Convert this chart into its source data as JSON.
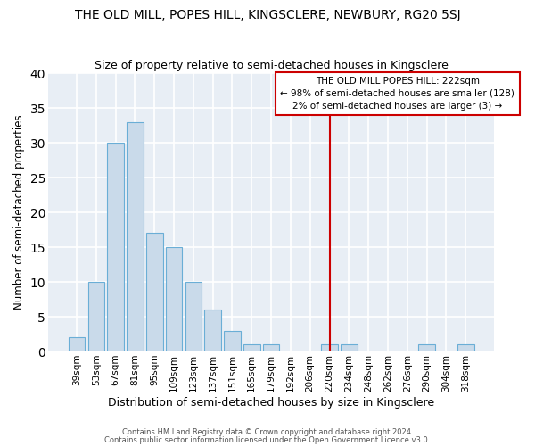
{
  "title": "THE OLD MILL, POPES HILL, KINGSCLERE, NEWBURY, RG20 5SJ",
  "subtitle": "Size of property relative to semi-detached houses in Kingsclere",
  "xlabel": "Distribution of semi-detached houses by size in Kingsclere",
  "ylabel": "Number of semi-detached properties",
  "categories": [
    "39sqm",
    "53sqm",
    "67sqm",
    "81sqm",
    "95sqm",
    "109sqm",
    "123sqm",
    "137sqm",
    "151sqm",
    "165sqm",
    "179sqm",
    "192sqm",
    "206sqm",
    "220sqm",
    "234sqm",
    "248sqm",
    "262sqm",
    "276sqm",
    "290sqm",
    "304sqm",
    "318sqm"
  ],
  "values": [
    2,
    10,
    30,
    33,
    17,
    15,
    10,
    6,
    3,
    1,
    1,
    0,
    0,
    1,
    1,
    0,
    0,
    0,
    1,
    0,
    1
  ],
  "bar_color": "#c9daea",
  "bar_edge_color": "#6aaed6",
  "plot_bg_color": "#e8eef5",
  "fig_bg_color": "#ffffff",
  "grid_color": "#ffffff",
  "vline_x_index": 13,
  "vline_color": "#cc0000",
  "annotation_title": "THE OLD MILL POPES HILL: 222sqm",
  "annotation_line1": "← 98% of semi-detached houses are smaller (128)",
  "annotation_line2": "2% of semi-detached houses are larger (3) →",
  "annotation_box_color": "#cc0000",
  "footer1": "Contains HM Land Registry data © Crown copyright and database right 2024.",
  "footer2": "Contains public sector information licensed under the Open Government Licence v3.0.",
  "ylim": [
    0,
    40
  ],
  "yticks": [
    0,
    5,
    10,
    15,
    20,
    25,
    30,
    35,
    40
  ]
}
